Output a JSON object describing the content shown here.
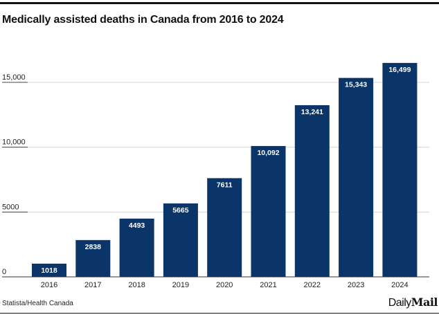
{
  "chart_data": {
    "type": "bar",
    "title": "Medically assisted deaths in Canada from 2016 to 2024",
    "categories": [
      "2016",
      "2017",
      "2018",
      "2019",
      "2020",
      "2021",
      "2022",
      "2023",
      "2024"
    ],
    "values": [
      1018,
      2838,
      4493,
      5665,
      7611,
      10092,
      13241,
      15343,
      16499
    ],
    "data_labels": [
      "1018",
      "2838",
      "4493",
      "5665",
      "7611",
      "10,092",
      "13,241",
      "15,343",
      "16,499"
    ],
    "y_ticks": [
      0,
      5000,
      10000,
      15000
    ],
    "y_tick_labels": [
      "0",
      "5000",
      "10,000",
      "15,000"
    ],
    "xlabel": "",
    "ylabel": "",
    "ylim": [
      0,
      16500
    ],
    "grid": true,
    "bar_color": "#0b3468"
  },
  "footer": {
    "source": "Statista/Health Canada",
    "logo": "Daily Mail",
    "logo_light": "Daily",
    "logo_bold": "Mail"
  }
}
